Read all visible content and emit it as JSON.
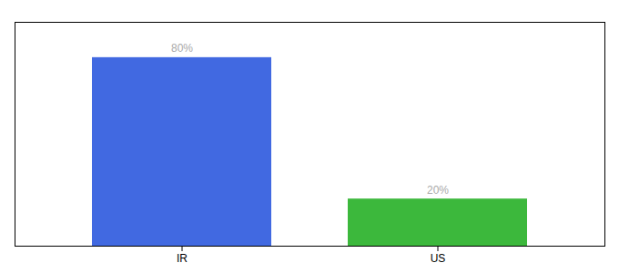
{
  "chart_data": {
    "type": "bar",
    "categories": [
      "IR",
      "US"
    ],
    "values": [
      80,
      20
    ],
    "colors": [
      "#4169E1",
      "#3CB83C"
    ],
    "data_labels": true,
    "value_labels": [
      "80%",
      "20%"
    ],
    "ylim": [
      0,
      95
    ],
    "tick_labels": "x"
  }
}
